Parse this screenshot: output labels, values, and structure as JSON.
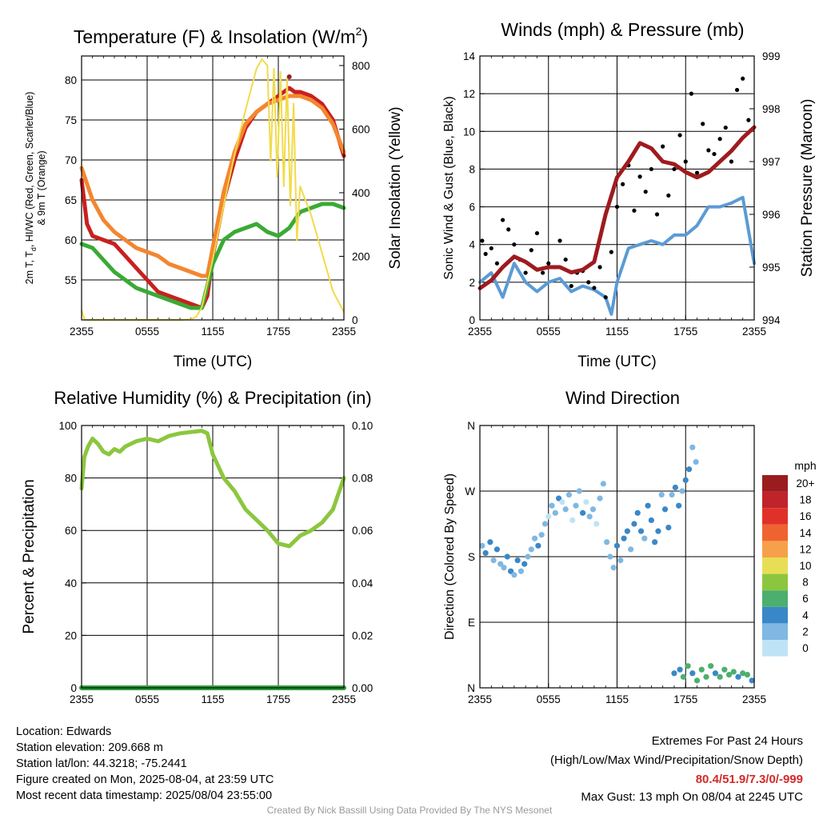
{
  "chart_data": [
    {
      "type": "line",
      "title": "Temperature (F) & Insolation (W/m",
      "title_sup": "2",
      "title_end": ")",
      "xlabel": "Time (UTC)",
      "ylabel_left_1": "2m T, T",
      "ylabel_left_1_sub": "d",
      "ylabel_left_1_end": ", HI/WC (Red, Green, Scarlet/Blue)",
      "ylabel_left_2": "& 9m T (Orange)",
      "ylabel_right": "Solar Insolation (Yellow)",
      "xticks": [
        "2355",
        "0555",
        "1155",
        "1755",
        "2355"
      ],
      "x_hours": [
        0,
        6,
        12,
        18,
        24
      ],
      "xlim": [
        0,
        24
      ],
      "ylim": [
        50,
        83
      ],
      "yticks": [
        55,
        60,
        65,
        70,
        75,
        80
      ],
      "y2lim": [
        0,
        830
      ],
      "y2ticks": [
        0,
        200,
        400,
        600,
        800
      ],
      "series": [
        {
          "key": "t2m_red",
          "color": "#c8201f",
          "axis": "left",
          "x": [
            0,
            0.5,
            1,
            2,
            3,
            4,
            5,
            6,
            7,
            8,
            9,
            10,
            11,
            11.5,
            12,
            13,
            14,
            15,
            16,
            17,
            18,
            19,
            19.5,
            20,
            21,
            22,
            23,
            24
          ],
          "y": [
            67.5,
            62,
            60.5,
            60,
            59.5,
            58,
            56.5,
            55,
            53.5,
            53,
            52.5,
            52,
            51.5,
            53,
            58,
            65,
            70,
            74,
            76,
            77,
            78,
            79,
            78.5,
            78.5,
            78,
            77,
            75,
            70.5
          ]
        },
        {
          "key": "t9m_orange",
          "color": "#f4862f",
          "axis": "left",
          "x": [
            0,
            1,
            2,
            3,
            4,
            5,
            6,
            7,
            8,
            9,
            10,
            11,
            11.5,
            12,
            13,
            14,
            15,
            16,
            17,
            18,
            19,
            20,
            21,
            22,
            23,
            24
          ],
          "y": [
            69,
            65,
            62.5,
            61,
            60,
            59,
            58.5,
            58,
            57,
            56.5,
            56,
            55.5,
            55.5,
            59,
            66,
            71,
            74.5,
            76,
            77,
            77.5,
            78,
            78,
            77.5,
            76.5,
            74.5,
            71
          ]
        },
        {
          "key": "td_green",
          "color": "#3aaa35",
          "axis": "left",
          "x": [
            0,
            1,
            2,
            3,
            4,
            5,
            6,
            7,
            8,
            9,
            10,
            11,
            12,
            13,
            14,
            15,
            16,
            17,
            18,
            19,
            20,
            21,
            22,
            23,
            24
          ],
          "y": [
            59.5,
            59,
            57.5,
            56,
            55,
            54,
            53.5,
            53,
            52.5,
            52,
            51.5,
            51.5,
            57,
            60,
            61,
            61.5,
            62,
            61,
            60.5,
            61.5,
            63.5,
            64,
            64.5,
            64.5,
            64
          ]
        },
        {
          "key": "insolation_yellow",
          "color": "#f1db4a",
          "axis": "right",
          "x": [
            0,
            0.15,
            0.3,
            1,
            5,
            9,
            10,
            10.5,
            11,
            12,
            13,
            14,
            15,
            16,
            16.5,
            17,
            17.3,
            17.6,
            17.9,
            18.2,
            18.5,
            18.8,
            19.1,
            19.4,
            19.7,
            20,
            21,
            22,
            23,
            24
          ],
          "y": [
            30,
            15,
            0,
            0,
            0,
            0,
            2,
            10,
            40,
            190,
            360,
            520,
            660,
            790,
            820,
            800,
            500,
            790,
            450,
            780,
            420,
            760,
            360,
            680,
            250,
            420,
            330,
            210,
            90,
            25
          ]
        }
      ],
      "max_point": {
        "x": 19,
        "y": 80.4
      }
    },
    {
      "type": "line",
      "title": "Winds (mph) & Pressure (mb)",
      "xlabel": "Time (UTC)",
      "ylabel_left": "Sonic Wind & Gust (Blue, Black)",
      "ylabel_right": "Station Pressure (Maroon)",
      "xticks": [
        "2355",
        "0555",
        "1155",
        "1755",
        "2355"
      ],
      "x_hours": [
        0,
        6,
        12,
        18,
        24
      ],
      "xlim": [
        0,
        24
      ],
      "ylim": [
        0,
        14
      ],
      "yticks": [
        0,
        2,
        4,
        6,
        8,
        10,
        12,
        14
      ],
      "y2lim": [
        994,
        999
      ],
      "y2ticks": [
        994,
        995,
        996,
        997,
        998,
        999
      ],
      "series": [
        {
          "key": "wind_blue",
          "color": "#5b9bd5",
          "axis": "left",
          "x": [
            0,
            1,
            2,
            3,
            4,
            5,
            6,
            7,
            8,
            9,
            10,
            11,
            11.5,
            12,
            13,
            14,
            15,
            16,
            17,
            18,
            19,
            20,
            21,
            22,
            23,
            24
          ],
          "y": [
            2,
            2.5,
            1.2,
            3,
            2,
            1.5,
            2,
            2.2,
            1.5,
            1.8,
            1.6,
            1.2,
            0.3,
            2,
            3.8,
            4,
            4.2,
            4,
            4.5,
            4.5,
            5,
            6,
            6,
            6.2,
            6.5,
            3
          ]
        },
        {
          "key": "pressure_maroon",
          "color": "#9e1b1e",
          "axis": "right",
          "x": [
            0,
            1,
            2,
            3,
            4,
            5,
            6,
            7,
            8,
            9,
            10,
            11,
            12,
            13,
            14,
            15,
            16,
            17,
            18,
            19,
            20,
            21,
            22,
            23,
            24
          ],
          "y": [
            994.6,
            994.75,
            995.0,
            995.2,
            995.1,
            994.95,
            995.0,
            995.0,
            994.9,
            994.95,
            995.1,
            996.0,
            996.7,
            997.0,
            997.35,
            997.25,
            997.0,
            996.95,
            996.8,
            996.7,
            996.8,
            997.0,
            997.2,
            997.45,
            997.65
          ]
        }
      ],
      "gust_points": {
        "x": [
          0.2,
          0.5,
          1,
          1.5,
          2,
          2.5,
          3,
          3.5,
          4,
          4.5,
          5,
          5.5,
          6,
          6.5,
          7,
          7.5,
          8,
          8.5,
          9,
          9.5,
          10,
          10.5,
          11,
          11.5,
          12,
          12.5,
          13,
          13.5,
          14,
          14.5,
          15,
          15.5,
          16,
          16.5,
          17,
          17.5,
          18,
          18.5,
          19,
          19.5,
          20,
          20.5,
          21,
          21.5,
          22,
          22.5,
          23,
          23.5
        ],
        "y": [
          4.2,
          3.5,
          3.8,
          3.0,
          5.3,
          4.8,
          4.0,
          3.2,
          2.5,
          3.7,
          4.6,
          2.5,
          3.0,
          2.8,
          4.2,
          3.2,
          1.8,
          2.5,
          2.6,
          2.0,
          1.7,
          2.8,
          1.2,
          3.6,
          6.0,
          7.2,
          8.2,
          5.8,
          7.6,
          6.8,
          8.0,
          5.6,
          9.2,
          6.6,
          8.0,
          9.8,
          8.4,
          12.0,
          7.8,
          10.4,
          9.0,
          8.8,
          9.6,
          10.2,
          8.4,
          12.2,
          12.8,
          10.6
        ]
      }
    },
    {
      "type": "line",
      "title": "Relative Humidity (%) & Precipitation (in)",
      "ylabel_left": "Percent & Precipitation",
      "xticks": [
        "2355",
        "0555",
        "1155",
        "1755",
        "2355"
      ],
      "x_hours": [
        0,
        6,
        12,
        18,
        24
      ],
      "xlim": [
        0,
        24
      ],
      "ylim": [
        0,
        100
      ],
      "yticks": [
        0,
        20,
        40,
        60,
        80,
        100
      ],
      "y2lim": [
        0,
        0.1
      ],
      "y2ticks": [
        "0.00",
        "0.02",
        "0.04",
        "0.06",
        "0.08",
        "0.10"
      ],
      "series": [
        {
          "key": "rh",
          "color": "#8cc63f",
          "axis": "left",
          "x": [
            0,
            0.25,
            0.6,
            1,
            1.5,
            2,
            2.5,
            3,
            3.5,
            4,
            5,
            6,
            7,
            8,
            9,
            10,
            11,
            11.5,
            12,
            13,
            14,
            15,
            16,
            17,
            18,
            19,
            20,
            21,
            22,
            23,
            24
          ],
          "y": [
            76,
            88,
            92,
            95,
            93,
            90,
            89,
            91,
            90,
            92,
            94,
            95,
            94,
            96,
            97,
            97.5,
            98,
            97,
            89,
            80,
            75,
            68,
            64,
            60,
            55,
            54,
            58,
            60,
            63,
            68,
            80
          ]
        },
        {
          "key": "precip",
          "color": "#2f9e3a",
          "axis": "right",
          "x": [
            0,
            24
          ],
          "y": [
            0,
            0
          ]
        }
      ]
    },
    {
      "type": "scatter",
      "title": "Wind Direction",
      "ylabel_left": "Direction (Colored By Speed)",
      "xticks": [
        "2355",
        "0555",
        "1155",
        "1755",
        "2355"
      ],
      "x_hours": [
        0,
        6,
        12,
        18,
        24
      ],
      "xlim": [
        0,
        24
      ],
      "ylim": [
        0,
        360
      ],
      "ytick_values": [
        0,
        90,
        180,
        270,
        360
      ],
      "ytick_labels": [
        "N",
        "E",
        "S",
        "W",
        "N"
      ],
      "points": [
        [
          0.2,
          195,
          2
        ],
        [
          0.5,
          185,
          3
        ],
        [
          0.9,
          200,
          4
        ],
        [
          1.2,
          175,
          2
        ],
        [
          1.5,
          190,
          3
        ],
        [
          1.8,
          170,
          1
        ],
        [
          2.1,
          165,
          2
        ],
        [
          2.4,
          180,
          4
        ],
        [
          2.7,
          160,
          3
        ],
        [
          3.0,
          155,
          2
        ],
        [
          3.3,
          175,
          4
        ],
        [
          3.6,
          160,
          1
        ],
        [
          3.9,
          170,
          3
        ],
        [
          4.2,
          180,
          2
        ],
        [
          4.5,
          190,
          1
        ],
        [
          4.8,
          205,
          2
        ],
        [
          5.1,
          195,
          3
        ],
        [
          5.4,
          210,
          1
        ],
        [
          5.7,
          225,
          2
        ],
        [
          6.0,
          235,
          0
        ],
        [
          6.3,
          250,
          1
        ],
        [
          6.6,
          240,
          2
        ],
        [
          6.9,
          260,
          3
        ],
        [
          7.2,
          255,
          0
        ],
        [
          7.5,
          245,
          1
        ],
        [
          7.8,
          265,
          2
        ],
        [
          8.1,
          230,
          0
        ],
        [
          8.4,
          250,
          1
        ],
        [
          8.7,
          270,
          2
        ],
        [
          9.0,
          240,
          3
        ],
        [
          9.3,
          255,
          0
        ],
        [
          9.6,
          235,
          1
        ],
        [
          9.9,
          245,
          2
        ],
        [
          10.2,
          225,
          0
        ],
        [
          10.5,
          260,
          1
        ],
        [
          10.8,
          280,
          1
        ],
        [
          11.1,
          200,
          2
        ],
        [
          11.4,
          180,
          1
        ],
        [
          11.7,
          165,
          2
        ],
        [
          12.0,
          195,
          3
        ],
        [
          12.3,
          175,
          1
        ],
        [
          12.6,
          205,
          4
        ],
        [
          12.9,
          215,
          3
        ],
        [
          13.2,
          190,
          2
        ],
        [
          13.5,
          225,
          4
        ],
        [
          13.8,
          240,
          3
        ],
        [
          14.1,
          215,
          4
        ],
        [
          14.4,
          205,
          2
        ],
        [
          14.7,
          250,
          3
        ],
        [
          15.0,
          230,
          4
        ],
        [
          15.3,
          200,
          3
        ],
        [
          15.6,
          215,
          4
        ],
        [
          15.9,
          265,
          2
        ],
        [
          16.2,
          245,
          3
        ],
        [
          16.5,
          220,
          4
        ],
        [
          16.8,
          265,
          2
        ],
        [
          17.1,
          275,
          3
        ],
        [
          17.4,
          250,
          4
        ],
        [
          17.7,
          270,
          2
        ],
        [
          18.0,
          285,
          3
        ],
        [
          18.3,
          300,
          3
        ],
        [
          18.6,
          330,
          2
        ],
        [
          18.9,
          310,
          1
        ],
        [
          17.0,
          20,
          3
        ],
        [
          17.5,
          25,
          4
        ],
        [
          17.8,
          15,
          5
        ],
        [
          18.2,
          30,
          6
        ],
        [
          18.6,
          20,
          4
        ],
        [
          19.0,
          10,
          5
        ],
        [
          19.4,
          25,
          6
        ],
        [
          19.8,
          15,
          5
        ],
        [
          20.2,
          30,
          6
        ],
        [
          20.6,
          20,
          4
        ],
        [
          21.0,
          15,
          5
        ],
        [
          21.4,
          25,
          6
        ],
        [
          21.8,
          18,
          5
        ],
        [
          22.2,
          22,
          6
        ],
        [
          22.6,
          15,
          4
        ],
        [
          23.0,
          20,
          6
        ],
        [
          23.4,
          18,
          5
        ],
        [
          23.8,
          10,
          4
        ]
      ]
    }
  ],
  "legend": {
    "title": "mph",
    "labels": [
      "20+",
      "18",
      "16",
      "14",
      "12",
      "10",
      "8",
      "6",
      "4",
      "2",
      "0"
    ],
    "colors": [
      "#9b1c1f",
      "#c0242a",
      "#e03128",
      "#ef6330",
      "#f7a04a",
      "#e8de55",
      "#8cc63f",
      "#4caf6e",
      "#3a87c8",
      "#7fb8e2",
      "#bfe3f6"
    ]
  },
  "info": {
    "location": "Location: Edwards",
    "elevation": "Station elevation: 209.668 m",
    "latlon": "Station lat/lon: 44.3218; -75.2441",
    "created": "Figure created on Mon, 2025-08-04, at 23:59 UTC",
    "recent": "Most recent data timestamp: 2025/08/04 23:55:00"
  },
  "extremes": {
    "title": "Extremes For Past 24 Hours",
    "subtitle": "(High/Low/Max Wind/Precipitation/Snow Depth)",
    "values": "80.4/51.9/7.3/0/-999",
    "gust": "Max Gust: 13 mph On 08/04 at 2245 UTC"
  },
  "credit": "Created By Nick Bassill Using Data Provided By The NYS Mesonet",
  "colors": {
    "grid": "#000000",
    "gust": "#000000"
  }
}
